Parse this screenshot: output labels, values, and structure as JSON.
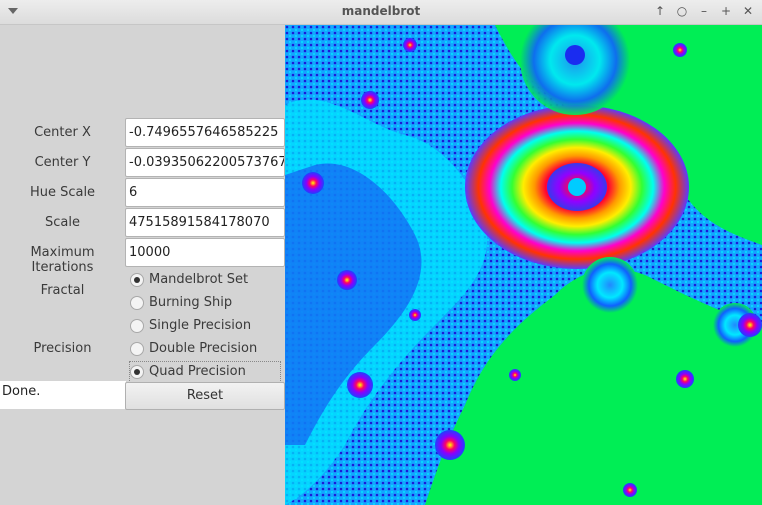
{
  "window": {
    "title": "mandelbrot"
  },
  "form": {
    "center_x": {
      "label": "Center X",
      "value": "-0.7496557646585225"
    },
    "center_y": {
      "label": "Center Y",
      "value": "-0.03935062200573767"
    },
    "hue_scale": {
      "label": "Hue Scale",
      "value": "6"
    },
    "scale": {
      "label": "Scale",
      "value": "47515891584178070"
    },
    "max_iter": {
      "label": "Maximum Iterations",
      "value": "10000"
    }
  },
  "fractal": {
    "label": "Fractal",
    "options": [
      "Mandelbrot Set",
      "Burning Ship"
    ],
    "selected": "Mandelbrot Set"
  },
  "precision": {
    "label": "Precision",
    "options": [
      "Single Precision",
      "Double Precision",
      "Quad Precision"
    ],
    "selected": "Quad Precision"
  },
  "status": {
    "text": "Done."
  },
  "reset": {
    "label": "Reset"
  },
  "colors": {
    "background_green": "#00ee55",
    "cyan": "#00f0ff",
    "blue": "#0a1ee8"
  }
}
